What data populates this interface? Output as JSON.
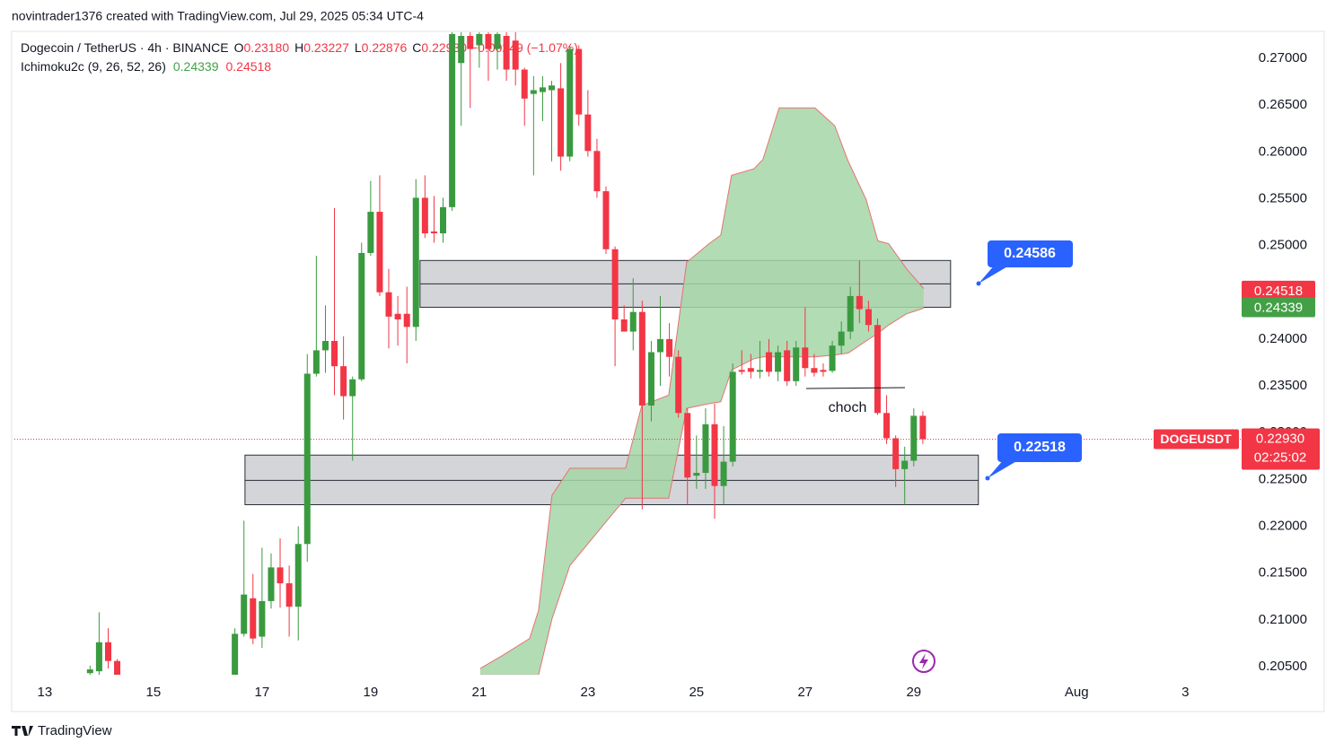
{
  "watermark": "novintrader1376 created with TradingView.com, Jul 29, 2025 05:34 UTC-4",
  "brand": "TradingView",
  "chart_data": {
    "type": "candlestick",
    "header": {
      "symbol": "Dogecoin / TetherUS · 4h · BINANCE",
      "ohlc": [
        {
          "key": "O",
          "value": "0.23180"
        },
        {
          "key": "H",
          "value": "0.23227"
        },
        {
          "key": "L",
          "value": "0.22876"
        },
        {
          "key": "C",
          "value": "0.22930"
        }
      ],
      "change": "−0.00249 (−1.07%)"
    },
    "indicator": {
      "name": "Ichimoku2c (9, 26, 52, 26)",
      "values": [
        "0.24339",
        "0.24518"
      ]
    },
    "up_color": "#3a9a3f",
    "down_color": "#f23645",
    "x": [
      13.833,
      14,
      14.167,
      14.333,
      16.5,
      16.667,
      16.833,
      17,
      17.167,
      17.333,
      17.5,
      17.667,
      17.833,
      18,
      18.167,
      18.333,
      18.5,
      18.667,
      18.833,
      19,
      19.167,
      19.333,
      19.5,
      19.667,
      19.833,
      20,
      20.167,
      20.333,
      20.5,
      20.667,
      20.833,
      21,
      21.167,
      21.333,
      21.5,
      21.667,
      21.833,
      22,
      22.167,
      22.333,
      22.5,
      22.667,
      22.833,
      23,
      23.167,
      23.333,
      23.5,
      23.667,
      23.833,
      24,
      24.167,
      24.333,
      24.5,
      24.667,
      24.833,
      25,
      25.167,
      25.333,
      25.5,
      25.667,
      25.833,
      26,
      26.167,
      26.333,
      26.5,
      26.667,
      26.833,
      27,
      27.167,
      27.333,
      27.5,
      27.667,
      27.833,
      28,
      28.167,
      28.333,
      28.5,
      28.667,
      28.833,
      29,
      29.167
    ],
    "open": [
      0.2043,
      0.2045,
      0.2076,
      0.2056,
      0.2041,
      0.2085,
      0.2123,
      0.2082,
      0.212,
      0.2156,
      0.2139,
      0.2114,
      0.2181,
      0.2363,
      0.2388,
      0.2398,
      0.2371,
      0.2339,
      0.2357,
      0.2492,
      0.2536,
      0.245,
      0.2427,
      0.2427,
      0.2413,
      0.2551,
      0.2515,
      0.2513,
      0.2541,
      0.2695,
      0.2724,
      0.2714,
      0.2726,
      0.271,
      0.2724,
      0.2719,
      0.2688,
      0.2662,
      0.2664,
      0.2666,
      0.2668,
      0.2595,
      0.271,
      0.264,
      0.2601,
      0.2558,
      0.2496,
      0.2421,
      0.2408,
      0.2429,
      0.2329,
      0.2386,
      0.24,
      0.2381,
      0.2321,
      0.2254,
      0.2257,
      0.2309,
      0.2243,
      0.2269,
      0.2367,
      0.2369,
      0.2365,
      0.2386,
      0.2365,
      0.2388,
      0.2355,
      0.2391,
      0.2369,
      0.2367,
      0.2366,
      0.2393,
      0.2408,
      0.2446,
      0.2432,
      0.2415,
      0.2321,
      0.2294,
      0.2261,
      0.227,
      0.2318
    ],
    "high": [
      0.2051,
      0.2108,
      0.2091,
      0.2058,
      0.2091,
      0.2206,
      0.2149,
      0.2177,
      0.2171,
      0.2187,
      0.2158,
      0.22,
      0.2384,
      0.2489,
      0.2436,
      0.254,
      0.2403,
      0.236,
      0.2503,
      0.2569,
      0.2575,
      0.2475,
      0.2446,
      0.2456,
      0.2571,
      0.2575,
      0.2553,
      0.2551,
      0.2729,
      0.2729,
      0.2729,
      0.2729,
      0.2729,
      0.2729,
      0.2729,
      0.2729,
      0.269,
      0.2681,
      0.2681,
      0.2676,
      0.2695,
      0.2714,
      0.2714,
      0.2666,
      0.2614,
      0.2563,
      0.2499,
      0.2436,
      0.2465,
      0.2441,
      0.2398,
      0.2446,
      0.2417,
      0.2388,
      0.2326,
      0.2297,
      0.2326,
      0.2331,
      0.2307,
      0.2374,
      0.2388,
      0.2384,
      0.2398,
      0.24,
      0.2393,
      0.2398,
      0.2398,
      0.2434,
      0.2384,
      0.2374,
      0.2398,
      0.2419,
      0.2456,
      0.2484,
      0.2441,
      0.2422,
      0.234,
      0.2297,
      0.2285,
      0.2326,
      0.2323
    ],
    "low": [
      0.2041,
      0.2041,
      0.2048,
      0.2041,
      0.2041,
      0.2082,
      0.2074,
      0.207,
      0.2112,
      0.2113,
      0.2082,
      0.2078,
      0.2162,
      0.236,
      0.2364,
      0.234,
      0.2314,
      0.227,
      0.2355,
      0.2489,
      0.2446,
      0.239,
      0.2393,
      0.2374,
      0.2398,
      0.2508,
      0.2503,
      0.2503,
      0.2537,
      0.2628,
      0.2647,
      0.269,
      0.2676,
      0.2688,
      0.2676,
      0.2671,
      0.2628,
      0.2575,
      0.2633,
      0.259,
      0.258,
      0.259,
      0.2628,
      0.2595,
      0.2551,
      0.2491,
      0.2371,
      0.2408,
      0.2388,
      0.2218,
      0.2312,
      0.235,
      0.236,
      0.2316,
      0.2223,
      0.224,
      0.224,
      0.2208,
      0.2223,
      0.2264,
      0.2362,
      0.2358,
      0.2358,
      0.236,
      0.2355,
      0.235,
      0.235,
      0.236,
      0.236,
      0.236,
      0.2364,
      0.2384,
      0.24,
      0.2417,
      0.2408,
      0.2319,
      0.2288,
      0.2242,
      0.2223,
      0.2264,
      0.2288
    ],
    "close": [
      0.2047,
      0.2076,
      0.2056,
      0.2041,
      0.2085,
      0.2127,
      0.208,
      0.212,
      0.2156,
      0.2139,
      0.2114,
      0.2181,
      0.2363,
      0.2388,
      0.2398,
      0.2371,
      0.2339,
      0.2357,
      0.2492,
      0.2536,
      0.245,
      0.2424,
      0.2421,
      0.2413,
      0.2551,
      0.2513,
      0.2513,
      0.2541,
      0.2726,
      0.2724,
      0.271,
      0.2726,
      0.271,
      0.2726,
      0.2688,
      0.2688,
      0.2657,
      0.2666,
      0.2669,
      0.2671,
      0.2595,
      0.271,
      0.264,
      0.2601,
      0.2558,
      0.2496,
      0.2421,
      0.2408,
      0.2429,
      0.2329,
      0.2386,
      0.24,
      0.2381,
      0.2321,
      0.2252,
      0.2257,
      0.2309,
      0.2243,
      0.2269,
      0.2365,
      0.2365,
      0.2365,
      0.2367,
      0.2365,
      0.2386,
      0.2355,
      0.2391,
      0.2369,
      0.2364,
      0.2365,
      0.2393,
      0.2408,
      0.2446,
      0.2432,
      0.2415,
      0.2321,
      0.2294,
      0.2261,
      0.227,
      0.2318,
      0.2293
    ],
    "cloud": {
      "fill": "#a5d6a7",
      "edge": "#e57373",
      "x": [
        21.017,
        21.43,
        21.926,
        22.091,
        22.339,
        22.669,
        23.694,
        23.992,
        24.488,
        24.818,
        25.231,
        25.446,
        25.645,
        26.058,
        26.223,
        26.521,
        27.182,
        27.545,
        27.793,
        28.124,
        28.339,
        28.537,
        28.868,
        29.182
      ],
      "upper": [
        0.2048,
        0.2062,
        0.208,
        0.211,
        0.2233,
        0.2262,
        0.2262,
        0.2329,
        0.234,
        0.2482,
        0.2502,
        0.2511,
        0.2575,
        0.2582,
        0.2592,
        0.2647,
        0.2647,
        0.2628,
        0.259,
        0.2549,
        0.2505,
        0.2502,
        0.2475,
        0.2454
      ],
      "lower": [
        0.2041,
        0.2041,
        0.2041,
        0.2041,
        0.2101,
        0.2158,
        0.223,
        0.223,
        0.223,
        0.2326,
        0.2331,
        0.2333,
        0.2367,
        0.2379,
        0.2381,
        0.2381,
        0.2381,
        0.2383,
        0.2385,
        0.2398,
        0.2406,
        0.2415,
        0.2427,
        0.2433
      ]
    },
    "zones": [
      {
        "x0": 19.909,
        "x1": 29.678,
        "top": 0.2484,
        "mid": 0.2459,
        "bottom": 0.2434
      },
      {
        "x0": 16.686,
        "x1": 30.19,
        "top": 0.2276,
        "mid": 0.2249,
        "bottom": 0.2223
      }
    ],
    "callouts": [
      "0.24586",
      "0.22518"
    ],
    "annotation": "choch",
    "price_badges": [
      {
        "value": 0.24518,
        "label": "0.24518",
        "color": "#f23645"
      },
      {
        "value": 0.24339,
        "label": "0.24339",
        "color": "#43a047"
      }
    ],
    "current": {
      "symbol": "DOGEUSDT",
      "value": 0.2293,
      "label": "0.22930",
      "countdown": "02:25:02",
      "color": "#f23645"
    },
    "xlim": [
      12.39,
      35.07
    ],
    "xticks": [
      13,
      15,
      17,
      19,
      21,
      23,
      25,
      27,
      29,
      {
        "value": 32,
        "label": "Aug"
      },
      {
        "value": 34,
        "label": "3"
      }
    ],
    "ylim": [
      0.20413,
      0.27288
    ],
    "yticks": [
      {
        "value": 0.205,
        "label": "0.20500"
      },
      {
        "value": 0.21,
        "label": "0.21000"
      },
      {
        "value": 0.215,
        "label": "0.21500"
      },
      {
        "value": 0.22,
        "label": "0.22000"
      },
      {
        "value": 0.225,
        "label": "0.22500"
      },
      {
        "value": 0.23,
        "label": "0.23000"
      },
      {
        "value": 0.235,
        "label": "0.23500"
      },
      {
        "value": 0.24,
        "label": "0.24000"
      },
      {
        "value": 0.245,
        "label": "0.24500"
      },
      {
        "value": 0.25,
        "label": "0.25000"
      },
      {
        "value": 0.255,
        "label": "0.25500"
      },
      {
        "value": 0.26,
        "label": "0.26000"
      },
      {
        "value": 0.265,
        "label": "0.26500"
      },
      {
        "value": 0.27,
        "label": "0.27000"
      }
    ],
    "grid": false
  }
}
